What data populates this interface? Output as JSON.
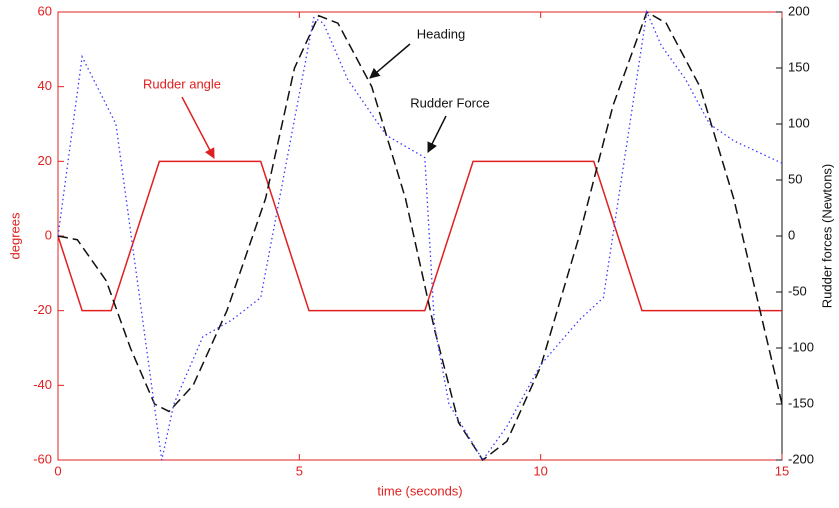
{
  "chart_data": {
    "type": "line",
    "xlabel": "time (seconds)",
    "ylabel": "degrees",
    "y2label": "Rudder forces (Newtons)",
    "xlim": [
      0,
      15
    ],
    "xticks": [
      0,
      5,
      10,
      15
    ],
    "ylim": [
      -60,
      60
    ],
    "yticks": [
      -60,
      -40,
      -20,
      0,
      20,
      40,
      60
    ],
    "y2lim": [
      -200,
      200
    ],
    "y2ticks": [
      -200,
      -150,
      -100,
      -50,
      0,
      50,
      100,
      150,
      200
    ],
    "axis_color": "#e02020",
    "series": [
      {
        "name": "Rudder angle",
        "color": "#e02020",
        "style": "solid",
        "x": [
          0,
          0.5,
          1.1,
          2.1,
          4.2,
          5.2,
          7.6,
          8.6,
          11.1,
          12.1,
          15
        ],
        "values": [
          0,
          -20,
          -20,
          20,
          20,
          -20,
          -20,
          20,
          20,
          -20,
          -20
        ]
      },
      {
        "name": "Heading",
        "color": "#111111",
        "style": "dashed",
        "x": [
          0,
          0.4,
          1,
          1.5,
          2,
          2.3,
          2.8,
          3.5,
          4.3,
          4.9,
          5.4,
          5.8,
          6.5,
          7.2,
          7.8,
          8.3,
          8.8,
          9.3,
          10,
          10.8,
          11.5,
          12.2,
          12.6,
          13.3,
          14,
          15
        ],
        "values": [
          0,
          -1,
          -12,
          -30,
          -45,
          -47,
          -40,
          -20,
          10,
          45,
          59,
          57,
          40,
          10,
          -25,
          -50,
          -60,
          -55,
          -35,
          0,
          35,
          60,
          57,
          40,
          10,
          -45
        ]
      },
      {
        "name": "Rudder Force",
        "color": "#3a3aff",
        "style": "dotted",
        "axis": "y2",
        "x": [
          0,
          0.5,
          1.2,
          2.15,
          2.4,
          3,
          3.6,
          4.2,
          5.3,
          5.5,
          6,
          6.8,
          7.6,
          7.8,
          8.1,
          8.8,
          9.3,
          10,
          10.8,
          11.3,
          12.2,
          12.5,
          13,
          13.5,
          14,
          15
        ],
        "values": [
          0,
          160,
          100,
          -200,
          -150,
          -90,
          -75,
          -55,
          195,
          190,
          140,
          90,
          70,
          -80,
          -150,
          -200,
          -170,
          -115,
          -75,
          -55,
          200,
          170,
          140,
          100,
          85,
          65
        ]
      }
    ]
  }
}
